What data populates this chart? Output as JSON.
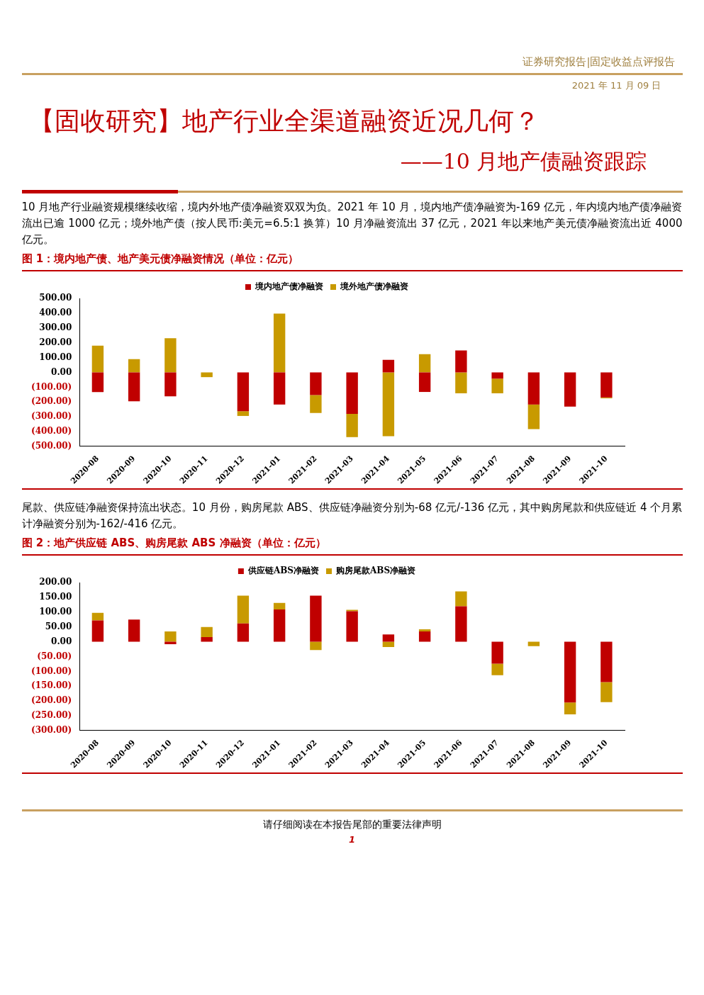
{
  "chart_data": [
    {
      "type": "other",
      "title": "【固收研究】地产行业全渠道融资近况几何？",
      "subtitle": "——10 月地产债融资跟踪",
      "annotations": [
        "证券研究报告|固定收益点评报告",
        "2021 年 11 月 09 日",
        "请仔细阅读在本报告尾部的重要法律声明",
        "1"
      ]
    },
    {
      "type": "bar",
      "stacked": true,
      "title": "图 1：境内地产债、地产美元债净融资情况（单位：亿元）",
      "annotations": [
        "10 月地产行业融资规模继续收缩，境内外地产债净融资双双为负。2021 年 10 月，境内地产债净融资为-169 亿元，年内境内地产债净融资流出已逾 1000 亿元；境外地产债（按人民币:美元=6.5:1 换算）10 月净融资流出 37 亿元，2021 年以来地产美元债净融资流出近 4000 亿元。"
      ],
      "categories": [
        "2020-08",
        "2020-09",
        "2020-10",
        "2020-11",
        "2020-12",
        "2021-01",
        "2021-02",
        "2021-03",
        "2021-04",
        "2021-05",
        "2021-06",
        "2021-07",
        "2021-08",
        "2021-09",
        "2021-10"
      ],
      "series": [
        {
          "name": "境内地产债净融资",
          "color": "#c00000",
          "values": [
            -133,
            -195,
            -162,
            0,
            -262,
            -217,
            -153,
            -280,
            85,
            -132,
            148,
            -42,
            -217,
            -231,
            -169
          ]
        },
        {
          "name": "境外地产债净融资",
          "color": "#c89a00",
          "values": [
            180,
            90,
            231,
            -32,
            -32,
            397,
            -121,
            -157,
            -431,
            123,
            -141,
            -99,
            -166,
            0,
            -6
          ]
        }
      ],
      "ylim": [
        -500,
        500
      ],
      "yticks": [
        {
          "value": 500,
          "label": "500.00"
        },
        {
          "value": 400,
          "label": "400.00"
        },
        {
          "value": 300,
          "label": "300.00"
        },
        {
          "value": 200,
          "label": "200.00"
        },
        {
          "value": 100,
          "label": "100.00"
        },
        {
          "value": 0,
          "label": "0.00"
        },
        {
          "value": -100,
          "label": "(100.00)"
        },
        {
          "value": -200,
          "label": "(200.00)"
        },
        {
          "value": -300,
          "label": "(300.00)"
        },
        {
          "value": -400,
          "label": "(400.00)"
        },
        {
          "value": -500,
          "label": "(500.00)"
        }
      ],
      "legend": "top",
      "grid": false
    },
    {
      "type": "bar",
      "stacked": true,
      "title": "图 2：地产供应链 ABS、购房尾款 ABS 净融资（单位：亿元）",
      "annotations": [
        "尾款、供应链净融资保持流出状态。10 月份，购房尾款 ABS、供应链净融资分别为-68 亿元/-136 亿元，其中购房尾款和供应链近 4 个月累计净融资分别为-162/-416 亿元。"
      ],
      "categories": [
        "2020-08",
        "2020-09",
        "2020-10",
        "2020-11",
        "2020-12",
        "2021-01",
        "2021-02",
        "2021-03",
        "2021-04",
        "2021-05",
        "2021-06",
        "2021-07",
        "2021-08",
        "2021-09",
        "2021-10"
      ],
      "series": [
        {
          "name": "供应链ABS净融资",
          "color": "#c00000",
          "values": [
            72,
            75,
            -8,
            16,
            62,
            109,
            156,
            103,
            25,
            35,
            120,
            -74,
            0,
            -205,
            -136
          ]
        },
        {
          "name": "购房尾款ABS净融资",
          "color": "#c89a00",
          "values": [
            26,
            0,
            35,
            34,
            94,
            22,
            -28,
            5,
            -18,
            7,
            50,
            -39,
            -15,
            -40,
            -68
          ]
        }
      ],
      "ylim": [
        -300,
        200
      ],
      "yticks": [
        {
          "value": 200,
          "label": "200.00"
        },
        {
          "value": 150,
          "label": "150.00"
        },
        {
          "value": 100,
          "label": "100.00"
        },
        {
          "value": 50,
          "label": "50.00"
        },
        {
          "value": 0,
          "label": "0.00"
        },
        {
          "value": -50,
          "label": "(50.00)"
        },
        {
          "value": -100,
          "label": "(100.00)"
        },
        {
          "value": -150,
          "label": "(150.00)"
        },
        {
          "value": -200,
          "label": "(200.00)"
        },
        {
          "value": -250,
          "label": "(250.00)"
        },
        {
          "value": -300,
          "label": "(300.00)"
        }
      ],
      "legend": "top",
      "grid": false
    }
  ]
}
